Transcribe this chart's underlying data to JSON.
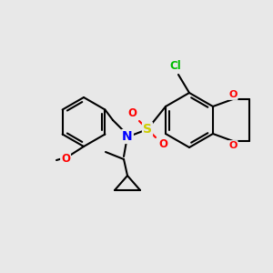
{
  "background_color": "#e8e8e8",
  "bond_color": "#000000",
  "bond_width": 1.5,
  "atom_colors": {
    "N": "#0000ff",
    "O": "#ff0000",
    "S": "#cccc00",
    "Cl": "#00bb00",
    "C": "#000000"
  },
  "figsize": [
    3.0,
    3.0
  ],
  "dpi": 100
}
